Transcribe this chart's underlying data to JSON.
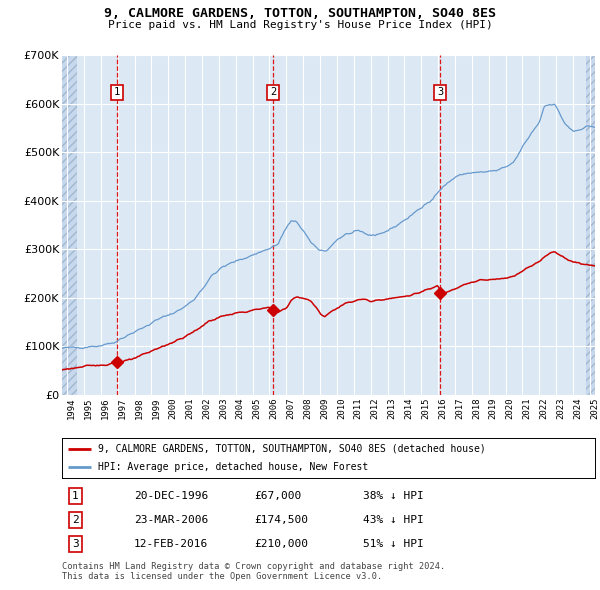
{
  "title": "9, CALMORE GARDENS, TOTTON, SOUTHAMPTON, SO40 8ES",
  "subtitle": "Price paid vs. HM Land Registry's House Price Index (HPI)",
  "red_label": "9, CALMORE GARDENS, TOTTON, SOUTHAMPTON, SO40 8ES (detached house)",
  "blue_label": "HPI: Average price, detached house, New Forest",
  "sales": [
    {
      "num": 1,
      "date_label": "20-DEC-1996",
      "price_label": "£67,000",
      "hpi_label": "38% ↓ HPI",
      "year": 1996.97,
      "price": 67000
    },
    {
      "num": 2,
      "date_label": "23-MAR-2006",
      "price_label": "£174,500",
      "hpi_label": "43% ↓ HPI",
      "year": 2006.22,
      "price": 174500
    },
    {
      "num": 3,
      "date_label": "12-FEB-2016",
      "price_label": "£210,000",
      "hpi_label": "51% ↓ HPI",
      "year": 2016.12,
      "price": 210000
    }
  ],
  "footer": "Contains HM Land Registry data © Crown copyright and database right 2024.\nThis data is licensed under the Open Government Licence v3.0.",
  "bg_color": "#dce9f5",
  "hatch_color": "#c8d8ec",
  "grid_color": "#ffffff",
  "red_color": "#cc0000",
  "blue_color": "#6699cc",
  "ylim": [
    0,
    700000
  ],
  "xlim_start": 1993.7,
  "xlim_end": 2025.3,
  "hatch_left_end": 1994.58,
  "hatch_right_start": 2024.75
}
